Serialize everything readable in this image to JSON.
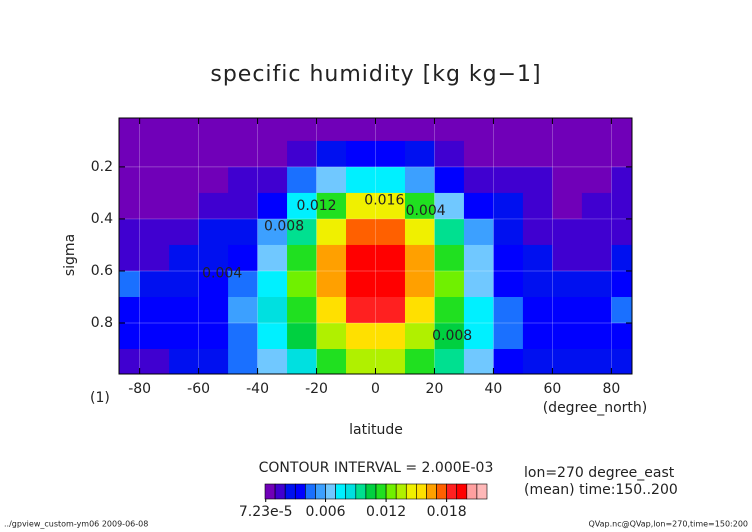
{
  "chart_data": {
    "type": "contour",
    "title": "specific humidity [kg kg−1]",
    "xlabel": "latitude",
    "ylabel": "sigma",
    "xunit": "(degree_north)",
    "yunit": "(1)",
    "xlim": [
      -87,
      87
    ],
    "ylim": [
      0.996,
      0.012
    ],
    "xticks": [
      -80,
      -60,
      -40,
      -20,
      0,
      20,
      40,
      60,
      80
    ],
    "yticks": [
      0.2,
      0.4,
      0.6,
      0.8
    ],
    "grid": true,
    "x": [
      -85,
      -75,
      -65,
      -55,
      -45,
      -35,
      -25,
      -15,
      -5,
      5,
      15,
      25,
      35,
      45,
      55,
      65,
      75,
      85
    ],
    "y": [
      0.05,
      0.15,
      0.25,
      0.35,
      0.45,
      0.55,
      0.65,
      0.75,
      0.85,
      0.95
    ],
    "z": [
      [
        0.0005,
        0.0005,
        0.0005,
        0.0005,
        0.0005,
        0.0005,
        0.0005,
        0.0005,
        0.0005,
        0.0005,
        0.0005,
        0.0005,
        0.0005,
        0.0005,
        0.0005,
        0.0005,
        0.0005,
        0.0005
      ],
      [
        0.0008,
        0.0008,
        0.0008,
        0.0008,
        0.0008,
        0.0008,
        0.0015,
        0.0025,
        0.003,
        0.003,
        0.002,
        0.0012,
        0.0009,
        0.0009,
        0.0009,
        0.0008,
        0.0008,
        0.0009
      ],
      [
        0.0008,
        0.0008,
        0.0008,
        0.0008,
        0.0012,
        0.0018,
        0.004,
        0.006,
        0.007,
        0.007,
        0.005,
        0.003,
        0.0015,
        0.0012,
        0.0011,
        0.0008,
        0.0009,
        0.0011
      ],
      [
        0.0009,
        0.0009,
        0.0009,
        0.001,
        0.0015,
        0.003,
        0.007,
        0.011,
        0.014,
        0.0145,
        0.011,
        0.006,
        0.0035,
        0.002,
        0.0013,
        0.0009,
        0.001,
        0.0012
      ],
      [
        0.0012,
        0.0013,
        0.0015,
        0.002,
        0.0028,
        0.005,
        0.009,
        0.014,
        0.0175,
        0.0178,
        0.014,
        0.009,
        0.005,
        0.0025,
        0.0016,
        0.0014,
        0.0014,
        0.0015
      ],
      [
        0.0018,
        0.0018,
        0.002,
        0.0025,
        0.0035,
        0.0065,
        0.011,
        0.016,
        0.0195,
        0.0195,
        0.016,
        0.011,
        0.006,
        0.003,
        0.002,
        0.0018,
        0.0018,
        0.002
      ],
      [
        0.0045,
        0.0025,
        0.0025,
        0.003,
        0.0045,
        0.0075,
        0.012,
        0.0165,
        0.0195,
        0.0195,
        0.0165,
        0.012,
        0.0065,
        0.0035,
        0.0025,
        0.0025,
        0.0028,
        0.0035
      ],
      [
        0.0035,
        0.003,
        0.003,
        0.0035,
        0.005,
        0.008,
        0.011,
        0.015,
        0.018,
        0.018,
        0.015,
        0.0115,
        0.007,
        0.004,
        0.0032,
        0.003,
        0.0035,
        0.0045
      ],
      [
        0.003,
        0.003,
        0.003,
        0.0035,
        0.0045,
        0.0075,
        0.01,
        0.013,
        0.0155,
        0.0155,
        0.0135,
        0.01,
        0.007,
        0.0042,
        0.003,
        0.003,
        0.0032,
        0.0035
      ],
      [
        0.0015,
        0.0018,
        0.002,
        0.0025,
        0.004,
        0.006,
        0.0085,
        0.011,
        0.013,
        0.013,
        0.0115,
        0.009,
        0.006,
        0.0035,
        0.0025,
        0.002,
        0.002,
        0.002
      ]
    ],
    "contour_labels": [
      {
        "label": "0.016",
        "lat": 3,
        "sigma": 0.33
      },
      {
        "label": "0.012",
        "lat": -20,
        "sigma": 0.35
      },
      {
        "label": "0.008",
        "lat": -31,
        "sigma": 0.43
      },
      {
        "label": "0.004",
        "lat": -52,
        "sigma": 0.61
      },
      {
        "label": "0.008",
        "lat": 26,
        "sigma": 0.85
      },
      {
        "label": "0.004",
        "lat": 17,
        "sigma": 0.37
      }
    ],
    "contour_interval": "CONTOUR INTERVAL = 2.000E-03",
    "colorbar": {
      "lim": [
        0,
        0.022
      ],
      "colors": [
        "#7000b8",
        "#4000d0",
        "#0010f0",
        "#0000ff",
        "#1a70ff",
        "#3ca0ff",
        "#70c8ff",
        "#00f0ff",
        "#00e0e0",
        "#00e090",
        "#00d040",
        "#20e020",
        "#70f000",
        "#b0f000",
        "#f0f000",
        "#ffe000",
        "#ffa000",
        "#ff6000",
        "#ff2020",
        "#ff0000",
        "#ffa0a0",
        "#ffb8b8"
      ],
      "ticks": [
        {
          "value": 7.23e-05,
          "label": "7.23e-5"
        },
        0.006,
        0.012,
        0.018
      ]
    },
    "info": [
      "lon=270 degree_east",
      "(mean) time:150..200"
    ],
    "footer_left": "../gpview_custom-ym06  2009-06-08",
    "footer_right": "QVap.nc@QVap,lon=270,time=150:200"
  }
}
